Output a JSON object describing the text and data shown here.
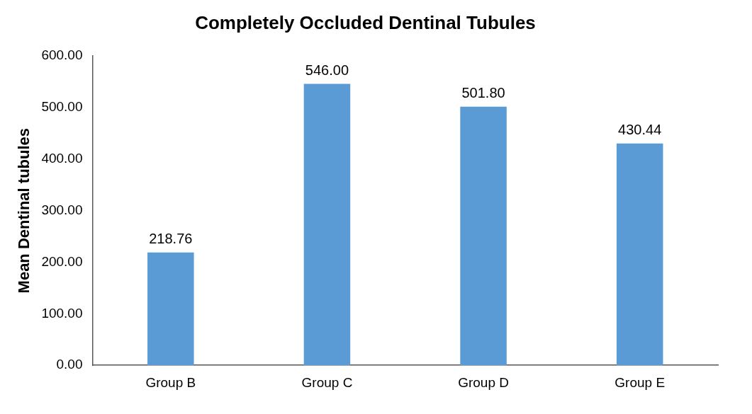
{
  "chart_data": {
    "type": "bar",
    "title": "Completely Occluded Dentinal Tubules",
    "ylabel": "Mean Dentinal tubules",
    "categories": [
      "Group B",
      "Group C",
      "Group D",
      "Group E"
    ],
    "values": [
      218.76,
      546.0,
      501.8,
      430.44
    ],
    "value_labels": [
      "218.76",
      "546.00",
      "501.80",
      "430.44"
    ],
    "color": "#5b9bd5",
    "ylim": [
      0,
      600
    ],
    "yticks": [
      {
        "value": 0,
        "label": "0.00"
      },
      {
        "value": 100,
        "label": "100.00"
      },
      {
        "value": 200,
        "label": "200.00"
      },
      {
        "value": 300,
        "label": "300.00"
      },
      {
        "value": 400,
        "label": "400.00"
      },
      {
        "value": 500,
        "label": "500.00"
      },
      {
        "value": 600,
        "label": "600.00"
      }
    ],
    "grid": false,
    "legend": false
  }
}
